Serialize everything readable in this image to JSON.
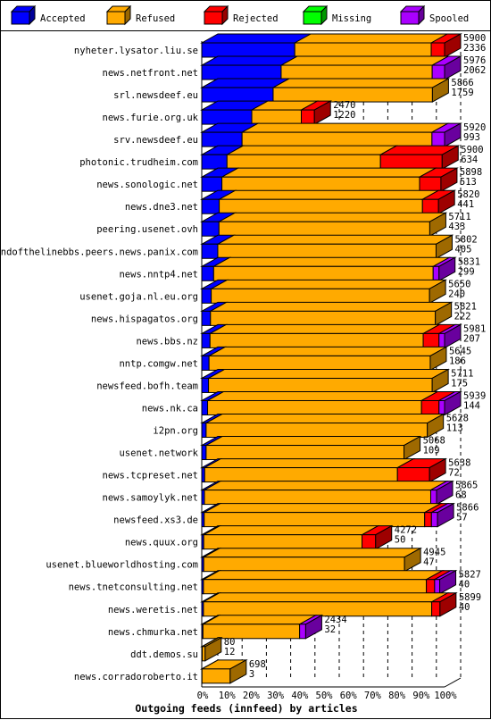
{
  "chart_data": {
    "type": "bar",
    "orientation": "horizontal",
    "stacked": true,
    "title": "Outgoing feeds (innfeed) by articles",
    "xlim": [
      0,
      100
    ],
    "xticks": [
      "0%",
      "10%",
      "20%",
      "30%",
      "40%",
      "50%",
      "60%",
      "70%",
      "80%",
      "90%",
      "100%"
    ],
    "legend_placement": "top",
    "series": [
      {
        "name": "Accepted",
        "color": "#0000ff"
      },
      {
        "name": "Refused",
        "color": "#ffaa00"
      },
      {
        "name": "Rejected",
        "color": "#ff0000"
      },
      {
        "name": "Missing",
        "color": "#00ff00"
      },
      {
        "name": "Spooled",
        "color": "#aa00ff"
      }
    ],
    "rows": [
      {
        "label": "nyheter.lysator.liu.se",
        "total": "5900",
        "accepted": "2336",
        "segments": [
          {
            "s": 0,
            "p": 38.3
          },
          {
            "s": 1,
            "p": 56.2
          },
          {
            "s": 2,
            "p": 5.5
          }
        ]
      },
      {
        "label": "news.netfront.net",
        "total": "5976",
        "accepted": "2062",
        "segments": [
          {
            "s": 0,
            "p": 32.7
          },
          {
            "s": 1,
            "p": 62.2
          },
          {
            "s": 4,
            "p": 5.1
          }
        ]
      },
      {
        "label": "srl.newsdeef.eu",
        "total": "5866",
        "accepted": "1759",
        "segments": [
          {
            "s": 0,
            "p": 29.4
          },
          {
            "s": 1,
            "p": 65.6
          }
        ]
      },
      {
        "label": "news.furie.org.uk",
        "total": "2470",
        "accepted": "1220",
        "segments": [
          {
            "s": 0,
            "p": 20.6
          },
          {
            "s": 1,
            "p": 20.4
          },
          {
            "s": 2,
            "p": 5.4
          }
        ]
      },
      {
        "label": "srv.newsdeef.eu",
        "total": "5920",
        "accepted": "993",
        "segments": [
          {
            "s": 0,
            "p": 16.6
          },
          {
            "s": 1,
            "p": 78.2
          },
          {
            "s": 4,
            "p": 5.2
          }
        ]
      },
      {
        "label": "photonic.trudheim.com",
        "total": "5900",
        "accepted": "634",
        "segments": [
          {
            "s": 0,
            "p": 10.4
          },
          {
            "s": 1,
            "p": 63.2
          },
          {
            "s": 2,
            "p": 25.4
          }
        ]
      },
      {
        "label": "news.sonologic.net",
        "total": "5898",
        "accepted": "513",
        "segments": [
          {
            "s": 0,
            "p": 8.3
          },
          {
            "s": 1,
            "p": 81.4
          },
          {
            "s": 2,
            "p": 8.8
          }
        ]
      },
      {
        "label": "news.dne3.net",
        "total": "5820",
        "accepted": "441",
        "segments": [
          {
            "s": 0,
            "p": 7.2
          },
          {
            "s": 1,
            "p": 83.7
          },
          {
            "s": 2,
            "p": 6.6
          }
        ]
      },
      {
        "label": "peering.usenet.ovh",
        "total": "5711",
        "accepted": "433",
        "segments": [
          {
            "s": 0,
            "p": 7.1
          },
          {
            "s": 1,
            "p": 86.8
          }
        ]
      },
      {
        "label": "endofthelinebbs.peers.news.panix.com",
        "total": "5802",
        "accepted": "405",
        "segments": [
          {
            "s": 0,
            "p": 6.6
          },
          {
            "s": 1,
            "p": 89.9
          }
        ]
      },
      {
        "label": "news.nntp4.net",
        "total": "5831",
        "accepted": "299",
        "segments": [
          {
            "s": 0,
            "p": 4.9
          },
          {
            "s": 1,
            "p": 90.4
          },
          {
            "s": 4,
            "p": 2.4
          }
        ]
      },
      {
        "label": "usenet.goja.nl.eu.org",
        "total": "5650",
        "accepted": "240",
        "segments": [
          {
            "s": 0,
            "p": 3.9
          },
          {
            "s": 1,
            "p": 89.9
          }
        ]
      },
      {
        "label": "news.hispagatos.org",
        "total": "5821",
        "accepted": "222",
        "segments": [
          {
            "s": 0,
            "p": 3.6
          },
          {
            "s": 1,
            "p": 92.6
          }
        ]
      },
      {
        "label": "news.bbs.nz",
        "total": "5981",
        "accepted": "207",
        "segments": [
          {
            "s": 0,
            "p": 3.4
          },
          {
            "s": 1,
            "p": 87.8
          },
          {
            "s": 2,
            "p": 6.5
          },
          {
            "s": 4,
            "p": 2.3
          }
        ]
      },
      {
        "label": "nntp.comgw.net",
        "total": "5645",
        "accepted": "186",
        "segments": [
          {
            "s": 0,
            "p": 3.0
          },
          {
            "s": 1,
            "p": 91.1
          }
        ]
      },
      {
        "label": "newsfeed.bofh.team",
        "total": "5711",
        "accepted": "175",
        "segments": [
          {
            "s": 0,
            "p": 2.8
          },
          {
            "s": 1,
            "p": 92.1
          }
        ]
      },
      {
        "label": "news.nk.ca",
        "total": "5939",
        "accepted": "144",
        "segments": [
          {
            "s": 0,
            "p": 2.4
          },
          {
            "s": 1,
            "p": 88.1
          },
          {
            "s": 2,
            "p": 7.2
          },
          {
            "s": 4,
            "p": 2.3
          }
        ]
      },
      {
        "label": "i2pn.org",
        "total": "5628",
        "accepted": "113",
        "segments": [
          {
            "s": 0,
            "p": 1.8
          },
          {
            "s": 1,
            "p": 91.1
          }
        ]
      },
      {
        "label": "usenet.network",
        "total": "5068",
        "accepted": "109",
        "segments": [
          {
            "s": 0,
            "p": 1.8
          },
          {
            "s": 1,
            "p": 81.5
          }
        ]
      },
      {
        "label": "news.tcpreset.net",
        "total": "5638",
        "accepted": "72",
        "segments": [
          {
            "s": 0,
            "p": 1.2
          },
          {
            "s": 1,
            "p": 79.4
          },
          {
            "s": 2,
            "p": 13.2
          }
        ]
      },
      {
        "label": "news.samoylyk.net",
        "total": "5865",
        "accepted": "68",
        "segments": [
          {
            "s": 0,
            "p": 1.1
          },
          {
            "s": 1,
            "p": 93.2
          },
          {
            "s": 4,
            "p": 2.4
          }
        ]
      },
      {
        "label": "newsfeed.xs3.de",
        "total": "5866",
        "accepted": "57",
        "segments": [
          {
            "s": 0,
            "p": 1.0
          },
          {
            "s": 1,
            "p": 90.8
          },
          {
            "s": 2,
            "p": 2.8
          },
          {
            "s": 4,
            "p": 2.5
          }
        ]
      },
      {
        "label": "news.quux.org",
        "total": "4272",
        "accepted": "50",
        "segments": [
          {
            "s": 0,
            "p": 0.8
          },
          {
            "s": 1,
            "p": 65.2
          },
          {
            "s": 2,
            "p": 5.6
          }
        ]
      },
      {
        "label": "usenet.blueworldhosting.com",
        "total": "4945",
        "accepted": "47",
        "segments": [
          {
            "s": 0,
            "p": 0.8
          },
          {
            "s": 1,
            "p": 82.7
          }
        ]
      },
      {
        "label": "news.tnetconsulting.net",
        "total": "5827",
        "accepted": "40",
        "segments": [
          {
            "s": 0,
            "p": 0.7
          },
          {
            "s": 1,
            "p": 91.8
          },
          {
            "s": 2,
            "p": 3.4
          },
          {
            "s": 4,
            "p": 2.1
          }
        ]
      },
      {
        "label": "news.weretis.net",
        "total": "5899",
        "accepted": "40",
        "segments": [
          {
            "s": 0,
            "p": 0.7
          },
          {
            "s": 1,
            "p": 94.0
          },
          {
            "s": 2,
            "p": 3.4
          }
        ]
      },
      {
        "label": "news.chmurka.net",
        "total": "2434",
        "accepted": "32",
        "segments": [
          {
            "s": 0,
            "p": 0.5
          },
          {
            "s": 1,
            "p": 39.8
          },
          {
            "s": 4,
            "p": 2.5
          }
        ]
      },
      {
        "label": "ddt.demos.su",
        "total": "80",
        "accepted": "12",
        "segments": [
          {
            "s": 0,
            "p": 0.2
          },
          {
            "s": 1,
            "p": 1.2
          }
        ]
      },
      {
        "label": "news.corradoroberto.it",
        "total": "698",
        "accepted": "3",
        "segments": [
          {
            "s": 0,
            "p": 0.1
          },
          {
            "s": 1,
            "p": 11.6
          }
        ]
      }
    ]
  }
}
